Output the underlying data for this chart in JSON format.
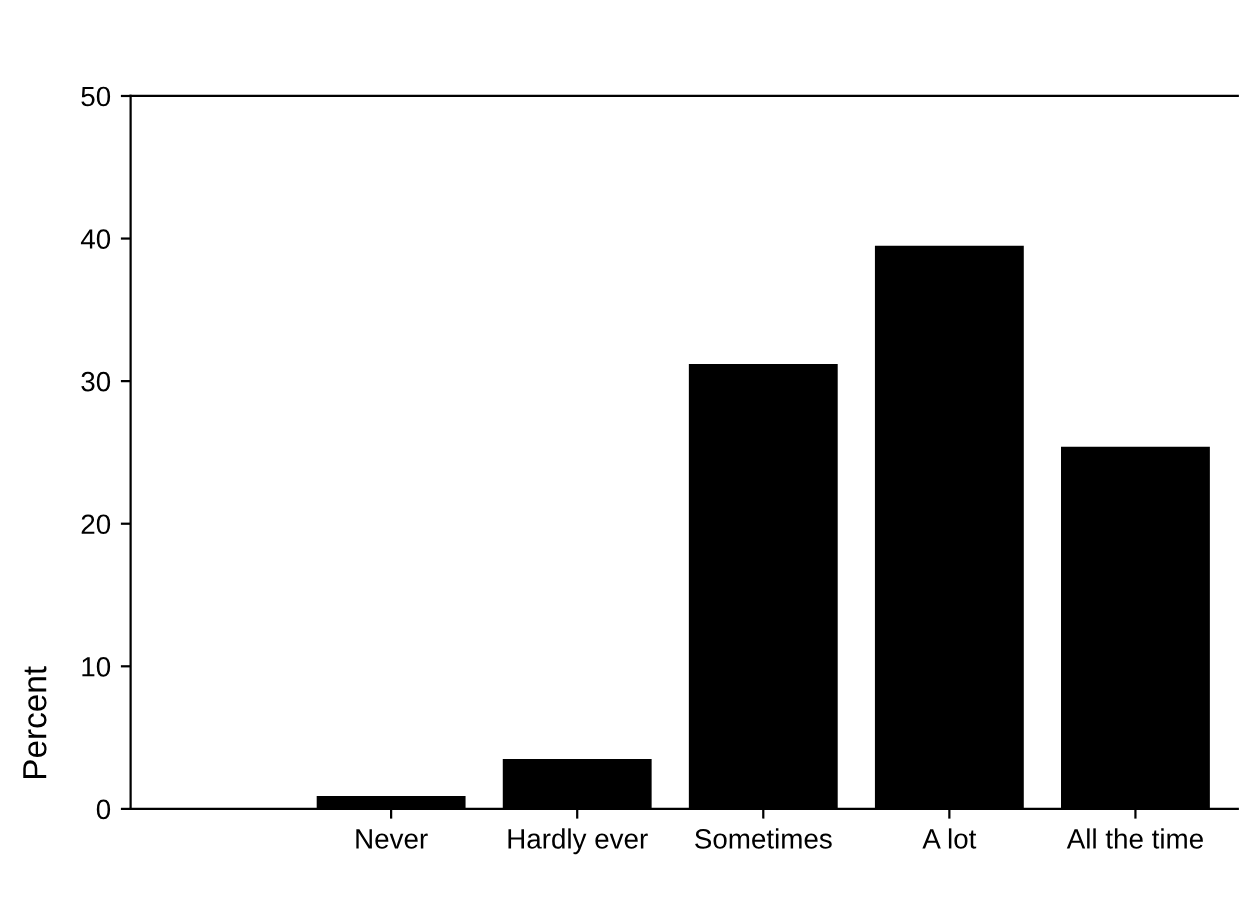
{
  "chart_data": {
    "type": "bar",
    "ylabel": "Percent",
    "categories": [
      "Never",
      "Hardly ever",
      "Sometimes",
      "A lot",
      "All the time"
    ],
    "values": [
      0.9,
      3.5,
      31.2,
      39.5,
      25.4
    ],
    "color": "#000000",
    "ylim": [
      0,
      50
    ],
    "yticks": [
      0,
      10,
      20,
      30,
      40,
      50
    ],
    "grid": false,
    "legend": false
  }
}
